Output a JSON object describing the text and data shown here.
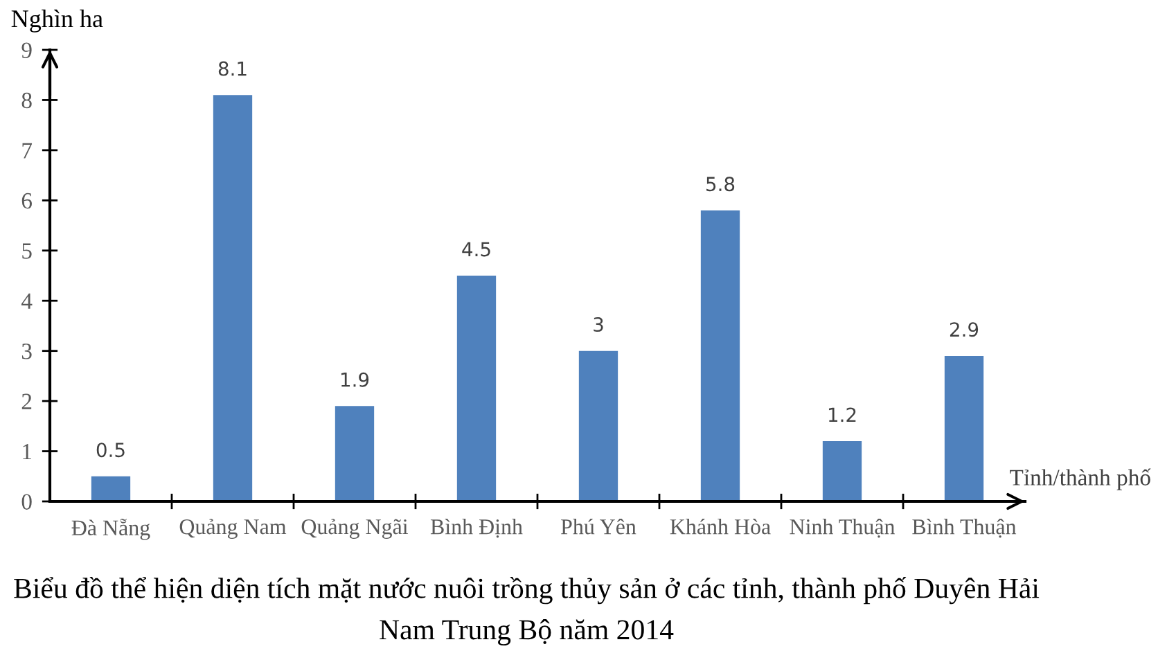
{
  "chart_data": {
    "type": "bar",
    "title": "Biểu đồ thể hiện diện tích mặt nước nuôi trồng thủy sản ở các tỉnh, thành phố Duyên Hải\nNam Trung Bộ năm 2014",
    "xlabel": "Tỉnh/thành phố",
    "ylabel": "Nghìn ha",
    "categories": [
      "Đà Nẵng",
      "Quảng Nam",
      "Quảng Ngãi",
      "Bình Định",
      "Phú Yên",
      "Khánh Hòa",
      "Ninh Thuận",
      "Bình Thuận"
    ],
    "values": [
      0.5,
      8.1,
      1.9,
      4.5,
      3,
      5.8,
      1.2,
      2.9
    ],
    "color": "#4f81bd",
    "ylim": [
      0,
      9
    ],
    "yticks": [
      0,
      1,
      2,
      3,
      4,
      5,
      6,
      7,
      8,
      9
    ],
    "data_labels": true
  }
}
